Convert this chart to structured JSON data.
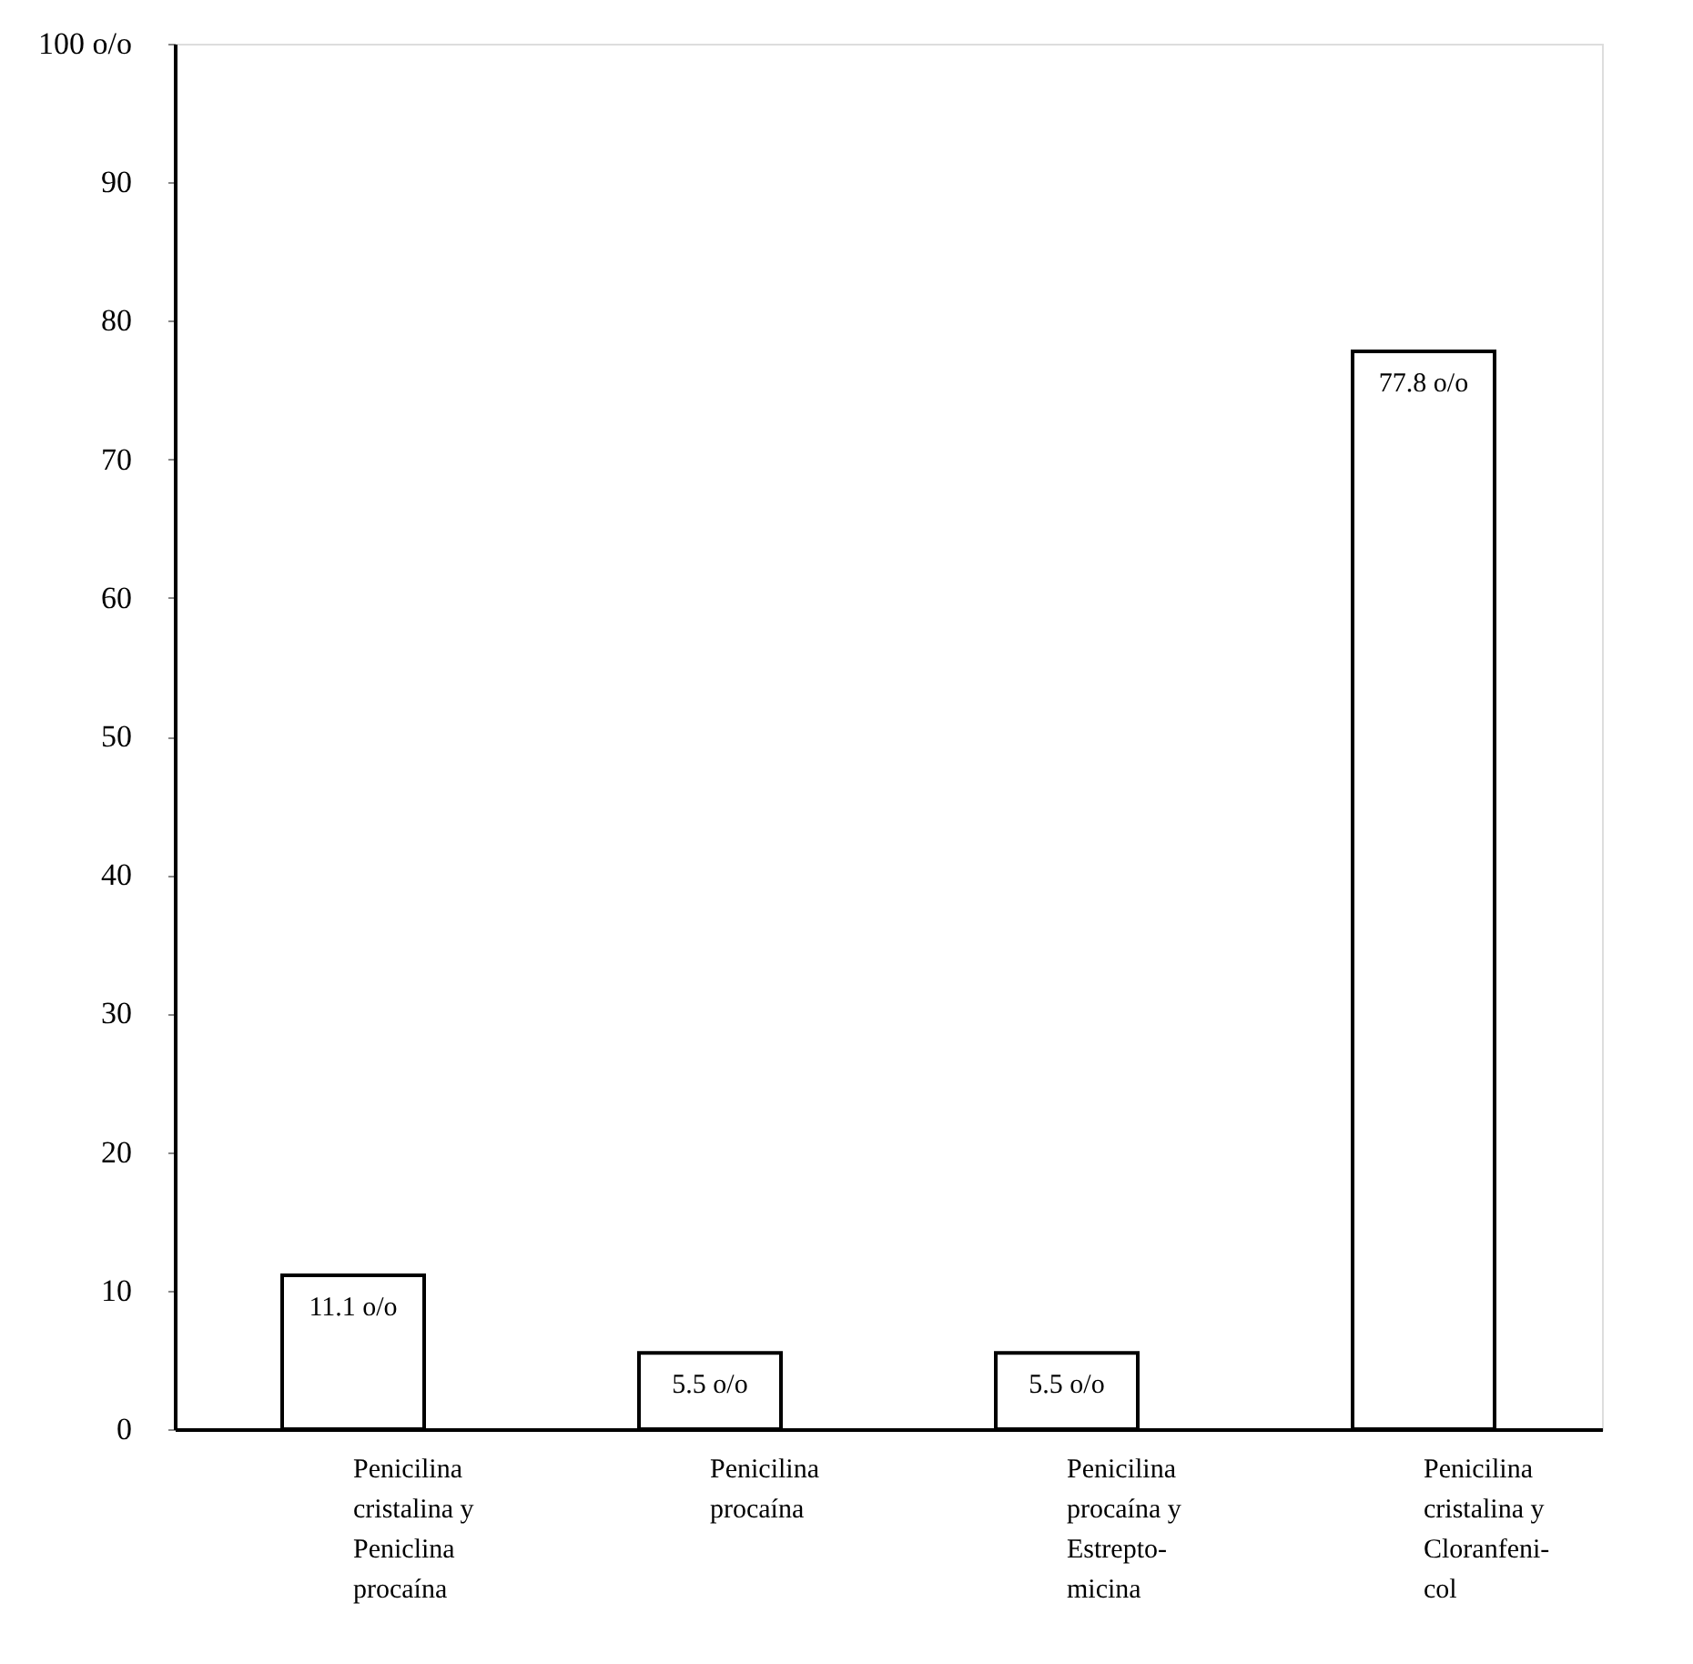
{
  "chart_data": {
    "type": "bar",
    "categories": [
      "Penicilina\ncristalina y\nPeniclina\nprocaína",
      "Penicilina\nprocaína",
      "Penicilina\nprocaína y\nEstrepto-\nmicina",
      "Penicilina\ncristalina y\nCloranfeni-\ncol"
    ],
    "values": [
      11.1,
      5.5,
      5.5,
      77.8
    ],
    "value_labels": [
      "11.1 o/o",
      "5.5 o/o",
      "5.5 o/o",
      "77.8 o/o"
    ],
    "color": "#ffffff",
    "ylim": [
      0,
      100
    ],
    "yticks": [
      0,
      10,
      20,
      30,
      40,
      50,
      60,
      70,
      80,
      90,
      {
        "value": 100,
        "label": "100 o/o"
      }
    ],
    "grid": false
  }
}
